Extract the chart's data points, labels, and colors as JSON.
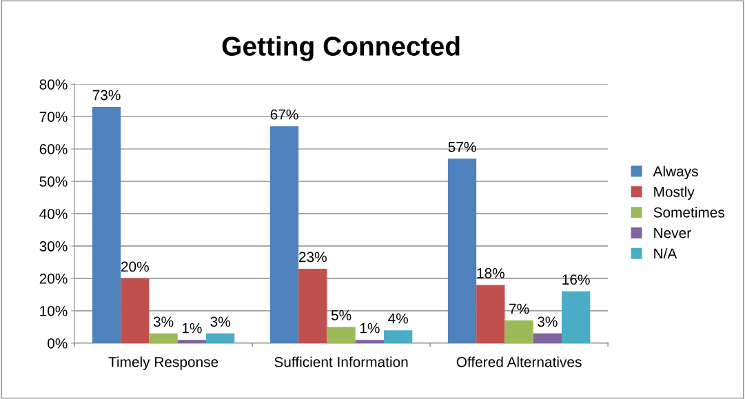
{
  "chart_data": {
    "type": "bar",
    "title": "Getting Connected",
    "categories": [
      "Timely Response",
      "Sufficient Information",
      "Offered Alternatives"
    ],
    "series": [
      {
        "name": "Always",
        "color": "#4f81bd",
        "values": [
          73,
          67,
          57
        ],
        "value_labels": [
          "73%",
          "67%",
          "57%"
        ]
      },
      {
        "name": "Mostly",
        "color": "#c0504d",
        "values": [
          20,
          23,
          18
        ],
        "value_labels": [
          "20%",
          "23%",
          "18%"
        ]
      },
      {
        "name": "Sometimes",
        "color": "#9bbb59",
        "values": [
          3,
          5,
          7
        ],
        "value_labels": [
          "3%",
          "5%",
          "7%"
        ]
      },
      {
        "name": "Never",
        "color": "#8064a2",
        "values": [
          1,
          1,
          3
        ],
        "value_labels": [
          "1%",
          "1%",
          "3%"
        ]
      },
      {
        "name": "N/A",
        "color": "#4bacc6",
        "values": [
          3,
          4,
          16
        ],
        "value_labels": [
          "3%",
          "4%",
          "16%"
        ]
      }
    ],
    "ylim": [
      0,
      80
    ],
    "yticks": [
      {
        "value": 0,
        "label": "0%"
      },
      {
        "value": 10,
        "label": "10%"
      },
      {
        "value": 20,
        "label": "20%"
      },
      {
        "value": 30,
        "label": "30%"
      },
      {
        "value": 40,
        "label": "40%"
      },
      {
        "value": 50,
        "label": "50%"
      },
      {
        "value": 60,
        "label": "60%"
      },
      {
        "value": 70,
        "label": "70%"
      },
      {
        "value": 80,
        "label": "80%"
      }
    ],
    "grid": "y",
    "legend": "right"
  }
}
